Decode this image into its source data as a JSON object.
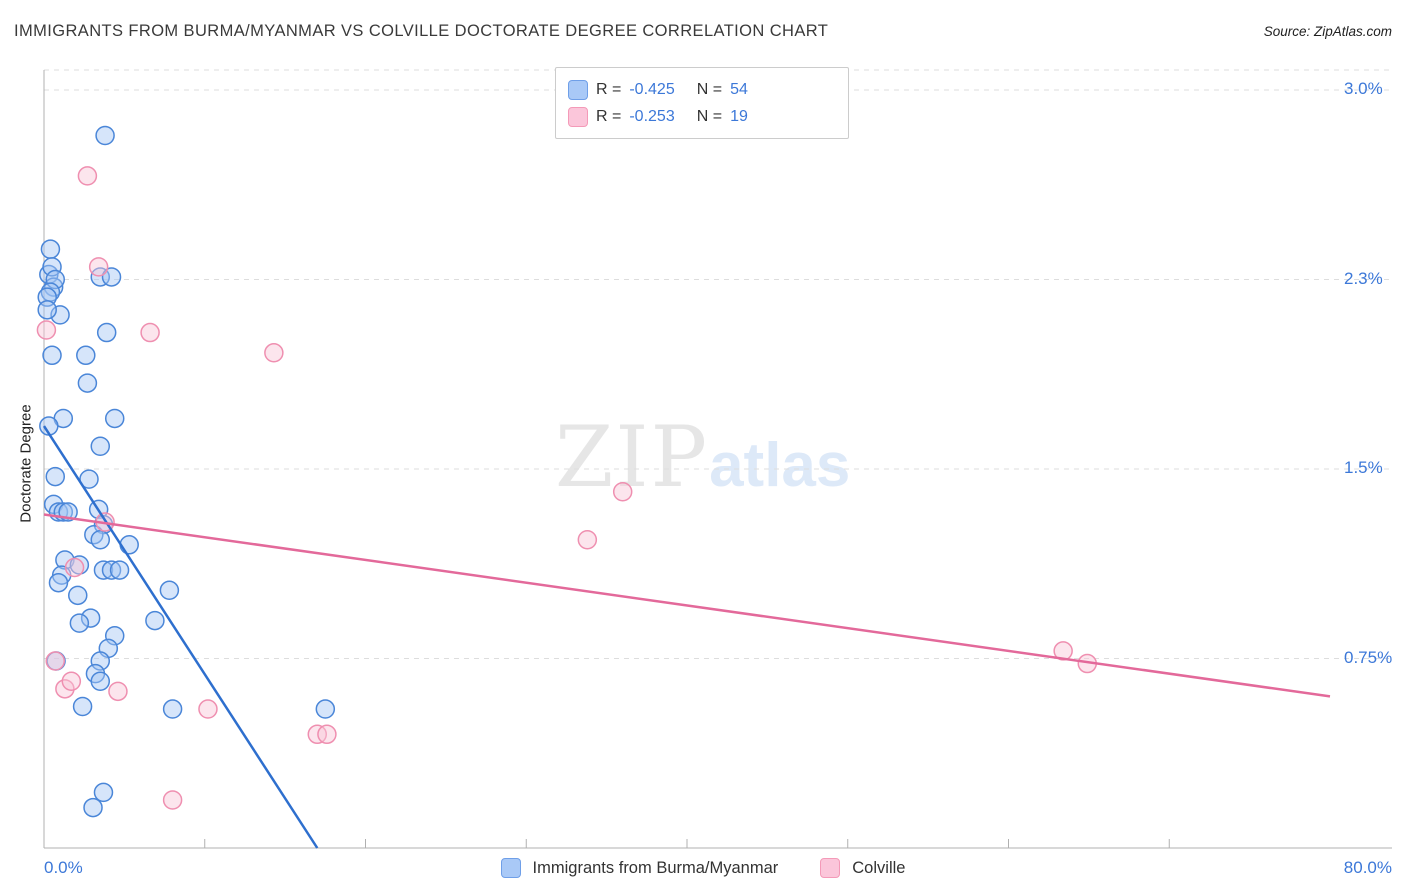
{
  "header": {
    "title": "IMMIGRANTS FROM BURMA/MYANMAR VS COLVILLE DOCTORATE DEGREE CORRELATION CHART",
    "source": "Source: ZipAtlas.com"
  },
  "legend_box": {
    "series": [
      {
        "r_label": "R =",
        "r_value": "-0.425",
        "n_label": "N =",
        "n_value": "54"
      },
      {
        "r_label": "R =",
        "r_value": "-0.253",
        "n_label": "N =",
        "n_value": "19"
      }
    ]
  },
  "watermark": {
    "zip": "ZIP",
    "atlas": "atlas"
  },
  "axes": {
    "y_title": "Doctorate Degree"
  },
  "bottom_legend": {
    "items": [
      {
        "label": "Immigrants from Burma/Myanmar"
      },
      {
        "label": "Colville"
      }
    ]
  },
  "chart_data": {
    "type": "scatter",
    "title": "Immigrants from Burma/Myanmar vs Colville Doctorate Degree Correlation",
    "xlabel": "Immigrants from Burma/Myanmar (%)",
    "ylabel": "Doctorate Degree",
    "xlim": [
      0,
      80
    ],
    "ylim": [
      0,
      3.05
    ],
    "grid": true,
    "x_ticks": [
      {
        "value": 0,
        "label": "0.0%"
      },
      {
        "value": 80,
        "label": "80.0%"
      }
    ],
    "y_ticks": [
      {
        "value": 0.75,
        "label": "0.75%"
      },
      {
        "value": 1.5,
        "label": "1.5%"
      },
      {
        "value": 2.25,
        "label": "2.3%"
      },
      {
        "value": 3.0,
        "label": "3.0%"
      }
    ],
    "series": [
      {
        "name": "Immigrants from Burma/Myanmar",
        "r": -0.425,
        "n": 54,
        "fill_color": "#a4c6f4",
        "stroke_color": "#4a86d8",
        "trend_color": "#2e6fce",
        "trend": {
          "x1": 0,
          "y1": 1.67,
          "x2": 17.0,
          "y2": 0.0
        },
        "points": [
          [
            0.4,
            2.37
          ],
          [
            3.8,
            2.82
          ],
          [
            0.3,
            2.27
          ],
          [
            0.5,
            2.3
          ],
          [
            0.6,
            2.22
          ],
          [
            0.7,
            2.25
          ],
          [
            0.4,
            2.2
          ],
          [
            0.2,
            2.18
          ],
          [
            3.5,
            2.26
          ],
          [
            4.2,
            2.26
          ],
          [
            1.0,
            2.11
          ],
          [
            3.9,
            2.04
          ],
          [
            0.2,
            2.13
          ],
          [
            0.5,
            1.95
          ],
          [
            2.6,
            1.95
          ],
          [
            2.7,
            1.84
          ],
          [
            1.2,
            1.7
          ],
          [
            4.4,
            1.7
          ],
          [
            0.3,
            1.67
          ],
          [
            3.5,
            1.59
          ],
          [
            0.7,
            1.47
          ],
          [
            2.8,
            1.46
          ],
          [
            0.6,
            1.36
          ],
          [
            0.9,
            1.33
          ],
          [
            1.2,
            1.33
          ],
          [
            1.5,
            1.33
          ],
          [
            3.4,
            1.34
          ],
          [
            3.7,
            1.28
          ],
          [
            3.1,
            1.24
          ],
          [
            3.5,
            1.22
          ],
          [
            5.3,
            1.2
          ],
          [
            1.3,
            1.14
          ],
          [
            2.2,
            1.12
          ],
          [
            1.1,
            1.08
          ],
          [
            0.9,
            1.05
          ],
          [
            3.7,
            1.1
          ],
          [
            4.2,
            1.1
          ],
          [
            4.7,
            1.1
          ],
          [
            2.1,
            1.0
          ],
          [
            7.8,
            1.02
          ],
          [
            2.9,
            0.91
          ],
          [
            2.2,
            0.89
          ],
          [
            6.9,
            0.9
          ],
          [
            4.4,
            0.84
          ],
          [
            4.0,
            0.79
          ],
          [
            3.5,
            0.74
          ],
          [
            0.75,
            0.74
          ],
          [
            3.2,
            0.69
          ],
          [
            3.5,
            0.66
          ],
          [
            2.4,
            0.56
          ],
          [
            8.0,
            0.55
          ],
          [
            17.5,
            0.55
          ],
          [
            3.7,
            0.22
          ],
          [
            3.05,
            0.16
          ]
        ]
      },
      {
        "name": "Colville",
        "r": -0.253,
        "n": 19,
        "fill_color": "#f9c6d8",
        "stroke_color": "#ef8fb0",
        "trend_color": "#e3699a",
        "trend": {
          "x1": 0,
          "y1": 1.32,
          "x2": 80,
          "y2": 0.6
        },
        "points": [
          [
            2.7,
            2.66
          ],
          [
            3.4,
            2.3
          ],
          [
            0.15,
            2.05
          ],
          [
            6.6,
            2.04
          ],
          [
            14.3,
            1.96
          ],
          [
            36.0,
            1.41
          ],
          [
            33.8,
            1.22
          ],
          [
            3.8,
            1.29
          ],
          [
            1.9,
            1.11
          ],
          [
            0.7,
            0.74
          ],
          [
            1.3,
            0.63
          ],
          [
            1.7,
            0.66
          ],
          [
            4.6,
            0.62
          ],
          [
            10.2,
            0.55
          ],
          [
            17.0,
            0.45
          ],
          [
            17.6,
            0.45
          ],
          [
            63.4,
            0.78
          ],
          [
            64.9,
            0.73
          ],
          [
            8.0,
            0.19
          ]
        ]
      }
    ]
  }
}
